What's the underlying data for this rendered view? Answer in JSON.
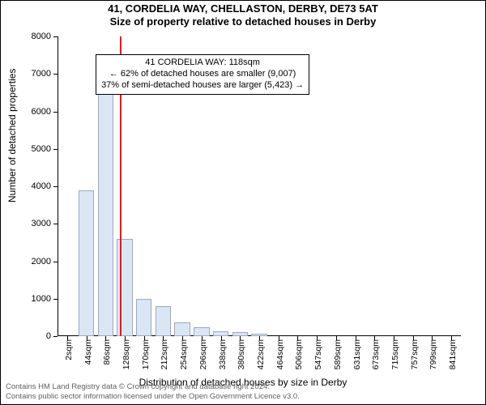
{
  "title": {
    "line1": "41, CORDELIA WAY, CHELLASTON, DERBY, DE73 5AT",
    "line2": "Size of property relative to detached houses in Derby"
  },
  "chart": {
    "type": "histogram",
    "ylabel": "Number of detached properties",
    "xlabel": "Distribution of detached houses by size in Derby",
    "ylim": [
      0,
      8000
    ],
    "ytick_step": 1000,
    "ytick_labels": [
      "0",
      "1000",
      "2000",
      "3000",
      "4000",
      "5000",
      "6000",
      "7000",
      "8000"
    ],
    "x_categories": [
      "2sqm",
      "44sqm",
      "86sqm",
      "128sqm",
      "170sqm",
      "212sqm",
      "254sqm",
      "296sqm",
      "338sqm",
      "380sqm",
      "422sqm",
      "464sqm",
      "506sqm",
      "547sqm",
      "589sqm",
      "631sqm",
      "673sqm",
      "715sqm",
      "757sqm",
      "799sqm",
      "841sqm"
    ],
    "values": [
      0,
      3900,
      6900,
      2600,
      1000,
      800,
      360,
      230,
      140,
      110,
      70,
      0,
      0,
      0,
      0,
      0,
      0,
      0,
      0,
      0,
      0
    ],
    "bar_fill": "#dbe6f5",
    "bar_border": "#9aa8c2",
    "axis_color": "#000000",
    "background": "#ffffff",
    "bar_width": 0.82,
    "label_fontsize": 12,
    "tick_fontsize": 11
  },
  "reference_line": {
    "index_position": 2.75,
    "color": "#ff0000",
    "width": 2
  },
  "annotation": {
    "line1": "41 CORDELIA WAY: 118sqm",
    "line2": "← 62% of detached houses are smaller (9,007)",
    "line3": "37% of semi-detached houses are larger (5,423) →",
    "box_border": "#000000",
    "box_background": "#ffffff",
    "fontsize": 11
  },
  "copyright": {
    "line1": "Contains HM Land Registry data © Crown copyright and database right 2024.",
    "line2": "Contains public sector information licensed under the Open Government Licence v3.0."
  }
}
